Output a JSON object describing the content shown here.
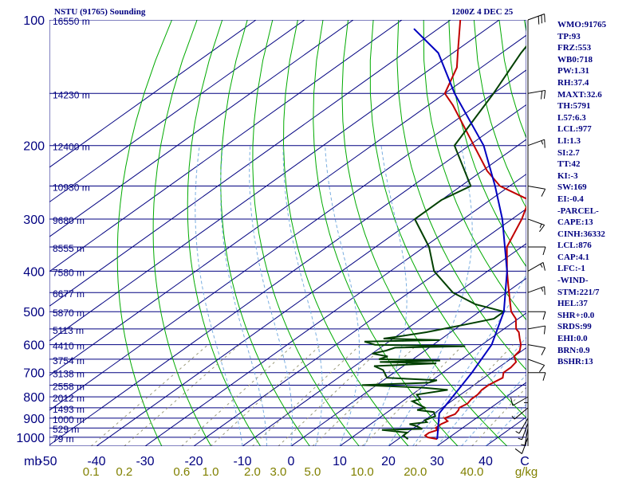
{
  "header": {
    "station": "NSTU (91765) Sounding",
    "valid_time": "1200Z  4 DEC 25"
  },
  "indices": [
    "WMO:91765",
    "TP:93",
    "FRZ:553",
    "WB0:718",
    "PW:1.31",
    "RH:37.4",
    "MAXT:32.6",
    "TH:5791",
    "L57:6.3",
    "LCL:977",
    "LI:1.3",
    "SI:2.7",
    "TT:42",
    "KI:-3",
    "SW:169",
    "EI:-0.4",
    "-PARCEL-",
    "CAPE:13",
    "CINH:36332",
    "LCL:876",
    "CAP:4.1",
    "LFC:-1",
    "-WIND-",
    "STM:221/7",
    "HEL:37",
    "SHR+:0.0",
    "SRDS:99",
    "EHI:0.0",
    "BRN:0.9",
    "BSHR:13"
  ],
  "colors": {
    "isobar": "#000080",
    "isotherm": "#000080",
    "dry_adiabat": "#00aa00",
    "moist_adiabat": "#7aaee0",
    "mixing_ratio": "#9a9a7a",
    "temperature": "#c00000",
    "dewpoint": "#004000",
    "parcel": "#0000c0",
    "wind_barb": "#000000"
  },
  "chart_data": {
    "type": "skew-t",
    "ylabel": "mb",
    "xlabel": "C",
    "mixing_ratio_unit": "g/kg",
    "pressure_ticks": [
      100,
      200,
      300,
      400,
      500,
      600,
      700,
      800,
      900,
      1000
    ],
    "temperature_ticks": [
      -50,
      -40,
      -30,
      -20,
      -10,
      0,
      10,
      20,
      30,
      40
    ],
    "mixing_ratio_labels": [
      "0.1",
      "0.2",
      "0.6",
      "1.0",
      "2.0",
      "3.0",
      "5.0",
      "10.0",
      "20.0",
      "40.0"
    ],
    "height_levels": [
      {
        "p": 100,
        "label": "16550 m"
      },
      {
        "p": 150,
        "label": "14230 m"
      },
      {
        "p": 200,
        "label": "12400 m"
      },
      {
        "p": 250,
        "label": "10930 m"
      },
      {
        "p": 300,
        "label": "9680 m"
      },
      {
        "p": 350,
        "label": "8555 m"
      },
      {
        "p": 400,
        "label": "7580 m"
      },
      {
        "p": 450,
        "label": "6677 m"
      },
      {
        "p": 500,
        "label": "5870 m"
      },
      {
        "p": 550,
        "label": "5113 m"
      },
      {
        "p": 600,
        "label": "4410 m"
      },
      {
        "p": 650,
        "label": "3754 m"
      },
      {
        "p": 700,
        "label": "3138 m"
      },
      {
        "p": 750,
        "label": "2558 m"
      },
      {
        "p": 800,
        "label": "2012 m"
      },
      {
        "p": 850,
        "label": "1493 m"
      },
      {
        "p": 900,
        "label": "1000 m"
      },
      {
        "p": 950,
        "label": "529 m"
      },
      {
        "p": 1000,
        "label": "79 m"
      }
    ],
    "series": [
      {
        "key": "temperature",
        "points": [
          [
            1010,
            28
          ],
          [
            1000,
            25.5
          ],
          [
            990,
            24.5
          ],
          [
            975,
            24.5
          ],
          [
            960,
            25.5
          ],
          [
            950,
            24.5
          ],
          [
            930,
            24.5
          ],
          [
            915,
            25
          ],
          [
            900,
            23.5
          ],
          [
            880,
            24.5
          ],
          [
            860,
            24
          ],
          [
            850,
            23.5
          ],
          [
            830,
            24
          ],
          [
            810,
            23.5
          ],
          [
            790,
            23.5
          ],
          [
            770,
            23
          ],
          [
            750,
            23
          ],
          [
            720,
            23.8
          ],
          [
            700,
            22.5
          ],
          [
            680,
            22.5
          ],
          [
            660,
            22
          ],
          [
            640,
            20
          ],
          [
            620,
            19.5
          ],
          [
            600,
            18
          ],
          [
            580,
            16
          ],
          [
            560,
            14
          ],
          [
            550,
            12.5
          ],
          [
            520,
            9.5
          ],
          [
            500,
            6.5
          ],
          [
            470,
            3
          ],
          [
            430,
            -2
          ],
          [
            400,
            -6
          ],
          [
            350,
            -13
          ],
          [
            300,
            -18
          ],
          [
            270,
            -22
          ],
          [
            250,
            -32
          ],
          [
            230,
            -39
          ],
          [
            200,
            -49
          ],
          [
            160,
            -65
          ],
          [
            150,
            -70
          ],
          [
            130,
            -75
          ],
          [
            120,
            -79
          ],
          [
            100,
            -88
          ]
        ]
      },
      {
        "key": "dewpoint",
        "points": [
          [
            1010,
            22
          ],
          [
            990,
            20
          ],
          [
            975,
            20
          ],
          [
            960,
            14
          ],
          [
            955,
            22
          ],
          [
            940,
            20
          ],
          [
            930,
            18
          ],
          [
            920,
            21
          ],
          [
            910,
            20
          ],
          [
            890,
            21
          ],
          [
            870,
            19.5
          ],
          [
            860,
            15.5
          ],
          [
            850,
            16.5
          ],
          [
            820,
            12
          ],
          [
            810,
            13
          ],
          [
            790,
            11
          ],
          [
            770,
            16
          ],
          [
            760,
            10
          ],
          [
            750,
            -3
          ],
          [
            740,
            10
          ],
          [
            730,
            11
          ],
          [
            720,
            0
          ],
          [
            700,
            -2
          ],
          [
            690,
            -3
          ],
          [
            675,
            -6
          ],
          [
            665,
            6
          ],
          [
            660,
            -6
          ],
          [
            655,
            6
          ],
          [
            650,
            -7
          ],
          [
            640,
            -6
          ],
          [
            630,
            -10
          ],
          [
            620,
            -8
          ],
          [
            610,
            -7
          ],
          [
            605,
            7
          ],
          [
            600,
            -12
          ],
          [
            590,
            -15
          ],
          [
            585,
            0
          ],
          [
            580,
            -12
          ],
          [
            575,
            -10
          ],
          [
            560,
            -5
          ],
          [
            540,
            0
          ],
          [
            520,
            5
          ],
          [
            500,
            5
          ],
          [
            480,
            -3
          ],
          [
            450,
            -11
          ],
          [
            400,
            -21
          ],
          [
            350,
            -29
          ],
          [
            300,
            -40
          ],
          [
            270,
            -40
          ],
          [
            250,
            -38
          ],
          [
            200,
            -53
          ],
          [
            150,
            -60
          ],
          [
            120,
            -66
          ],
          [
            100,
            -70
          ]
        ]
      },
      {
        "key": "parcel",
        "points": [
          [
            1010,
            28
          ],
          [
            876,
            21
          ],
          [
            800,
            19
          ],
          [
            700,
            16
          ],
          [
            600,
            12
          ],
          [
            500,
            5
          ],
          [
            400,
            -6
          ],
          [
            300,
            -22
          ],
          [
            250,
            -33
          ],
          [
            200,
            -47
          ],
          [
            150,
            -68
          ],
          [
            120,
            -83
          ],
          [
            105,
            -95
          ]
        ]
      }
    ],
    "wind_barbs": [
      {
        "p": 1000,
        "dir": 200,
        "kt": 10
      },
      {
        "p": 950,
        "dir": 190,
        "kt": 5
      },
      {
        "p": 925,
        "dir": 200,
        "kt": 5
      },
      {
        "p": 900,
        "dir": 210,
        "kt": 5
      },
      {
        "p": 850,
        "dir": 230,
        "kt": 5
      },
      {
        "p": 800,
        "dir": 240,
        "kt": 10
      },
      {
        "p": 750,
        "dir": 180,
        "kt": 5
      },
      {
        "p": 700,
        "dir": 90,
        "kt": 10
      },
      {
        "p": 650,
        "dir": 110,
        "kt": 10
      },
      {
        "p": 600,
        "dir": 100,
        "kt": 10
      },
      {
        "p": 550,
        "dir": 80,
        "kt": 10
      },
      {
        "p": 500,
        "dir": 90,
        "kt": 10
      },
      {
        "p": 450,
        "dir": 70,
        "kt": 15
      },
      {
        "p": 400,
        "dir": 60,
        "kt": 15
      },
      {
        "p": 350,
        "dir": 90,
        "kt": 10
      },
      {
        "p": 300,
        "dir": 110,
        "kt": 15
      },
      {
        "p": 250,
        "dir": 100,
        "kt": 10
      },
      {
        "p": 200,
        "dir": 70,
        "kt": 15
      },
      {
        "p": 150,
        "dir": 80,
        "kt": 20
      },
      {
        "p": 100,
        "dir": 70,
        "kt": 30
      }
    ]
  }
}
